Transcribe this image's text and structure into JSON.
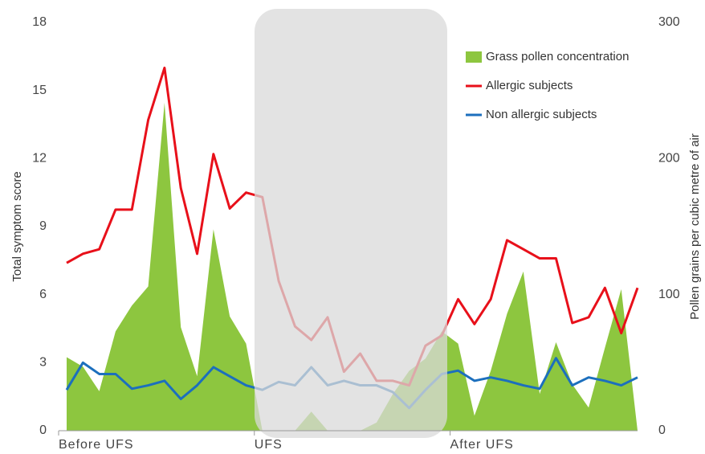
{
  "chart_data": {
    "type": "line",
    "y_label": "Total symptom score",
    "y2_label": "Pollen grains per cubic metre of air",
    "categories": [
      "Before UFS",
      null,
      null,
      null,
      null,
      null,
      null,
      null,
      null,
      null,
      null,
      null,
      "UFS",
      null,
      null,
      null,
      null,
      null,
      null,
      null,
      null,
      null,
      null,
      null,
      "After UFS",
      null,
      null,
      null,
      null,
      null,
      null,
      null,
      null,
      null,
      null,
      null
    ],
    "ylim": [
      0,
      18
    ],
    "yticks": [
      0,
      3,
      6,
      9,
      12,
      15,
      18
    ],
    "y2lim": [
      0,
      300
    ],
    "y2ticks": [
      0,
      100,
      200,
      300
    ],
    "legend": "top-right",
    "series": [
      {
        "name": "Grass pollen concentration",
        "type": "area",
        "axis": "y2",
        "color": "#8dc63f",
        "values": [
          54,
          47,
          29,
          73,
          92,
          106,
          241,
          76,
          40,
          148,
          84,
          64,
          0,
          0,
          0,
          14,
          0,
          0,
          0,
          6,
          27,
          44,
          53,
          73,
          64,
          11,
          44,
          86,
          117,
          27,
          65,
          34,
          17,
          61,
          104,
          0
        ]
      },
      {
        "name": "Allergic subjects",
        "type": "line",
        "color": "#e8101a",
        "values": [
          7.4,
          7.8,
          8.0,
          9.75,
          9.75,
          13.7,
          16.0,
          10.7,
          7.8,
          12.2,
          9.8,
          10.5,
          10.3,
          6.6,
          4.6,
          4.0,
          5.0,
          2.6,
          3.4,
          2.2,
          2.2,
          2.0,
          3.75,
          4.2,
          5.8,
          4.7,
          5.8,
          8.4,
          8.0,
          7.6,
          7.6,
          4.75,
          5.0,
          6.3,
          4.3,
          6.3
        ]
      },
      {
        "name": "Non allergic subjects",
        "type": "line",
        "color": "#1c6fbd",
        "values": [
          1.8,
          3.0,
          2.5,
          2.5,
          1.85,
          2.0,
          2.2,
          1.4,
          2.0,
          2.8,
          2.4,
          2.0,
          1.8,
          2.15,
          2.0,
          2.8,
          2.0,
          2.2,
          2.0,
          2.0,
          1.7,
          1.0,
          1.8,
          2.5,
          2.65,
          2.2,
          2.35,
          2.2,
          2.0,
          1.85,
          3.2,
          2.0,
          2.35,
          2.2,
          2.0,
          2.35
        ]
      }
    ]
  }
}
